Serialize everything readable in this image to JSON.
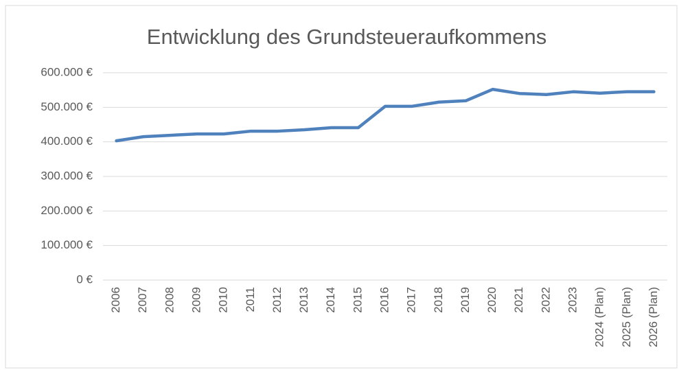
{
  "chart_data": {
    "type": "line",
    "title": "Entwicklung des Grundsteueraufkommens",
    "categories": [
      "2006",
      "2007",
      "2008",
      "2009",
      "2010",
      "2011",
      "2012",
      "2013",
      "2014",
      "2015",
      "2016",
      "2017",
      "2018",
      "2019",
      "2020",
      "2021",
      "2022",
      "2023",
      "2024 (Plan)",
      "2025 (Plan)",
      "2026 (Plan)"
    ],
    "series": [
      {
        "name": "Grundsteueraufkommen",
        "color": "#4f81bd",
        "values": [
          403000,
          415000,
          419000,
          423000,
          423000,
          431000,
          431000,
          435000,
          441000,
          441000,
          503000,
          503000,
          515000,
          519000,
          552000,
          540000,
          537000,
          545000,
          541000,
          545000,
          545000
        ]
      }
    ],
    "ylim": [
      0,
      600000
    ],
    "yticks": [
      {
        "value": 0,
        "label": "0 €"
      },
      {
        "value": 100000,
        "label": "100.000 €"
      },
      {
        "value": 200000,
        "label": "200.000 €"
      },
      {
        "value": 300000,
        "label": "300.000 €"
      },
      {
        "value": 400000,
        "label": "400.000 €"
      },
      {
        "value": 500000,
        "label": "500.000 €"
      },
      {
        "value": 600000,
        "label": "600.000 €"
      }
    ],
    "grid": true
  }
}
